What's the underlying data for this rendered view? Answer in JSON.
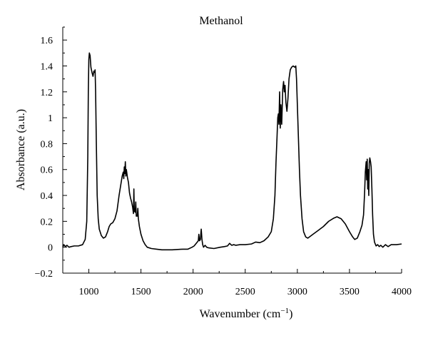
{
  "chart_data": {
    "type": "line",
    "title": "Methanol",
    "xlabel": "Wavenumber (cm",
    "xlabel_sup": "−1",
    "xlabel_end": ")",
    "ylabel": "Absorbance (a.u.)",
    "xlim": [
      750,
      4000
    ],
    "ylim": [
      -0.2,
      1.7
    ],
    "x_ticks": [
      1000,
      1500,
      2000,
      2500,
      3000,
      3500,
      4000
    ],
    "x_tick_labels": [
      "1000",
      "1500",
      "2000",
      "2500",
      "3000",
      "3500",
      "4000"
    ],
    "y_ticks": [
      -0.2,
      0,
      0.2,
      0.4,
      0.6,
      0.8,
      1,
      1.2,
      1.4,
      1.6
    ],
    "y_tick_labels": [
      "−0.2",
      "0",
      "0.2",
      "0.4",
      "0.6",
      "0.8",
      "1",
      "1.2",
      "1.4",
      "1.6"
    ],
    "grid": false,
    "series": [
      {
        "color": "#000000",
        "points": [
          [
            750,
            0.0
          ],
          [
            760,
            0.02
          ],
          [
            775,
            0.005
          ],
          [
            790,
            0.015
          ],
          [
            810,
            0.0
          ],
          [
            830,
            0.005
          ],
          [
            860,
            0.01
          ],
          [
            900,
            0.01
          ],
          [
            940,
            0.02
          ],
          [
            965,
            0.06
          ],
          [
            980,
            0.2
          ],
          [
            990,
            0.7
          ],
          [
            995,
            1.2
          ],
          [
            1000,
            1.45
          ],
          [
            1005,
            1.5
          ],
          [
            1012,
            1.48
          ],
          [
            1020,
            1.39
          ],
          [
            1030,
            1.35
          ],
          [
            1040,
            1.32
          ],
          [
            1048,
            1.36
          ],
          [
            1055,
            1.35
          ],
          [
            1060,
            1.37
          ],
          [
            1065,
            1.2
          ],
          [
            1072,
            0.8
          ],
          [
            1080,
            0.4
          ],
          [
            1090,
            0.22
          ],
          [
            1100,
            0.14
          ],
          [
            1120,
            0.09
          ],
          [
            1140,
            0.07
          ],
          [
            1160,
            0.08
          ],
          [
            1180,
            0.12
          ],
          [
            1195,
            0.16
          ],
          [
            1210,
            0.18
          ],
          [
            1230,
            0.19
          ],
          [
            1250,
            0.22
          ],
          [
            1270,
            0.28
          ],
          [
            1290,
            0.4
          ],
          [
            1310,
            0.5
          ],
          [
            1320,
            0.55
          ],
          [
            1330,
            0.58
          ],
          [
            1335,
            0.53
          ],
          [
            1340,
            0.62
          ],
          [
            1345,
            0.57
          ],
          [
            1350,
            0.66
          ],
          [
            1355,
            0.55
          ],
          [
            1360,
            0.6
          ],
          [
            1370,
            0.54
          ],
          [
            1380,
            0.5
          ],
          [
            1390,
            0.42
          ],
          [
            1400,
            0.38
          ],
          [
            1410,
            0.35
          ],
          [
            1420,
            0.31
          ],
          [
            1428,
            0.26
          ],
          [
            1432,
            0.45
          ],
          [
            1436,
            0.28
          ],
          [
            1445,
            0.27
          ],
          [
            1450,
            0.35
          ],
          [
            1455,
            0.24
          ],
          [
            1465,
            0.24
          ],
          [
            1470,
            0.3
          ],
          [
            1475,
            0.22
          ],
          [
            1485,
            0.16
          ],
          [
            1500,
            0.1
          ],
          [
            1520,
            0.05
          ],
          [
            1540,
            0.02
          ],
          [
            1560,
            0.0
          ],
          [
            1600,
            -0.01
          ],
          [
            1650,
            -0.015
          ],
          [
            1700,
            -0.02
          ],
          [
            1800,
            -0.02
          ],
          [
            1900,
            -0.015
          ],
          [
            1950,
            -0.015
          ],
          [
            1990,
            0.0
          ],
          [
            2010,
            0.01
          ],
          [
            2030,
            0.03
          ],
          [
            2050,
            0.05
          ],
          [
            2055,
            0.1
          ],
          [
            2062,
            0.05
          ],
          [
            2070,
            0.06
          ],
          [
            2078,
            0.14
          ],
          [
            2085,
            0.06
          ],
          [
            2092,
            0.02
          ],
          [
            2100,
            0.0
          ],
          [
            2115,
            0.015
          ],
          [
            2130,
            0.0
          ],
          [
            2150,
            -0.005
          ],
          [
            2200,
            -0.01
          ],
          [
            2260,
            0.0
          ],
          [
            2300,
            0.005
          ],
          [
            2330,
            0.01
          ],
          [
            2350,
            0.03
          ],
          [
            2370,
            0.015
          ],
          [
            2390,
            0.02
          ],
          [
            2410,
            0.015
          ],
          [
            2450,
            0.02
          ],
          [
            2500,
            0.02
          ],
          [
            2560,
            0.025
          ],
          [
            2600,
            0.04
          ],
          [
            2640,
            0.035
          ],
          [
            2680,
            0.05
          ],
          [
            2720,
            0.08
          ],
          [
            2750,
            0.12
          ],
          [
            2770,
            0.22
          ],
          [
            2785,
            0.4
          ],
          [
            2795,
            0.65
          ],
          [
            2805,
            0.85
          ],
          [
            2812,
            1.0
          ],
          [
            2818,
            1.03
          ],
          [
            2823,
            0.95
          ],
          [
            2830,
            1.2
          ],
          [
            2836,
            0.92
          ],
          [
            2842,
            1.1
          ],
          [
            2850,
            0.95
          ],
          [
            2860,
            1.22
          ],
          [
            2868,
            1.28
          ],
          [
            2875,
            1.2
          ],
          [
            2882,
            1.25
          ],
          [
            2890,
            1.12
          ],
          [
            2900,
            1.05
          ],
          [
            2910,
            1.15
          ],
          [
            2920,
            1.3
          ],
          [
            2932,
            1.37
          ],
          [
            2945,
            1.39
          ],
          [
            2960,
            1.4
          ],
          [
            2975,
            1.39
          ],
          [
            2985,
            1.4
          ],
          [
            2992,
            1.3
          ],
          [
            3000,
            1.1
          ],
          [
            3010,
            0.85
          ],
          [
            3020,
            0.6
          ],
          [
            3030,
            0.4
          ],
          [
            3045,
            0.22
          ],
          [
            3060,
            0.12
          ],
          [
            3080,
            0.08
          ],
          [
            3100,
            0.07
          ],
          [
            3150,
            0.1
          ],
          [
            3200,
            0.13
          ],
          [
            3250,
            0.16
          ],
          [
            3300,
            0.2
          ],
          [
            3350,
            0.225
          ],
          [
            3380,
            0.235
          ],
          [
            3420,
            0.22
          ],
          [
            3460,
            0.18
          ],
          [
            3500,
            0.12
          ],
          [
            3530,
            0.08
          ],
          [
            3550,
            0.06
          ],
          [
            3575,
            0.07
          ],
          [
            3600,
            0.12
          ],
          [
            3620,
            0.17
          ],
          [
            3635,
            0.25
          ],
          [
            3645,
            0.42
          ],
          [
            3652,
            0.58
          ],
          [
            3660,
            0.66
          ],
          [
            3665,
            0.52
          ],
          [
            3670,
            0.68
          ],
          [
            3675,
            0.45
          ],
          [
            3680,
            0.6
          ],
          [
            3685,
            0.4
          ],
          [
            3690,
            0.65
          ],
          [
            3695,
            0.69
          ],
          [
            3702,
            0.66
          ],
          [
            3708,
            0.62
          ],
          [
            3715,
            0.45
          ],
          [
            3722,
            0.25
          ],
          [
            3730,
            0.1
          ],
          [
            3740,
            0.04
          ],
          [
            3755,
            0.01
          ],
          [
            3770,
            0.02
          ],
          [
            3785,
            0.005
          ],
          [
            3800,
            0.015
          ],
          [
            3820,
            0.0
          ],
          [
            3845,
            0.02
          ],
          [
            3870,
            0.005
          ],
          [
            3900,
            0.02
          ],
          [
            3950,
            0.02
          ],
          [
            4000,
            0.025
          ]
        ]
      }
    ]
  }
}
